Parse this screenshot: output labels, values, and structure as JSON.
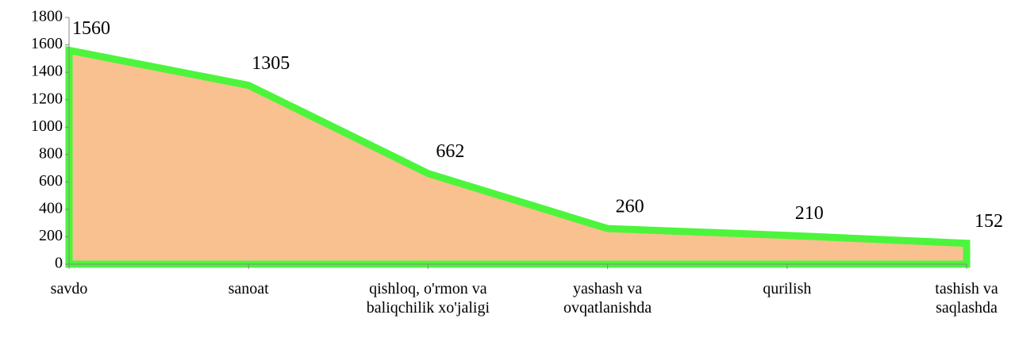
{
  "chart_data": {
    "type": "area",
    "categories": [
      "savdo",
      "sanoat",
      "qishloq, o'rmon va baliqchilik xo'jaligi",
      "yashash va ovqatlanishda",
      "qurilish",
      "tashish va saqlashda"
    ],
    "values": [
      1560,
      1305,
      662,
      260,
      210,
      152
    ],
    "color": "#f9c090",
    "line_color": "#4cf53c",
    "ylim": [
      0,
      1800
    ],
    "yticks": [
      0,
      200,
      400,
      600,
      800,
      1000,
      1200,
      1400,
      1600,
      1800
    ]
  }
}
